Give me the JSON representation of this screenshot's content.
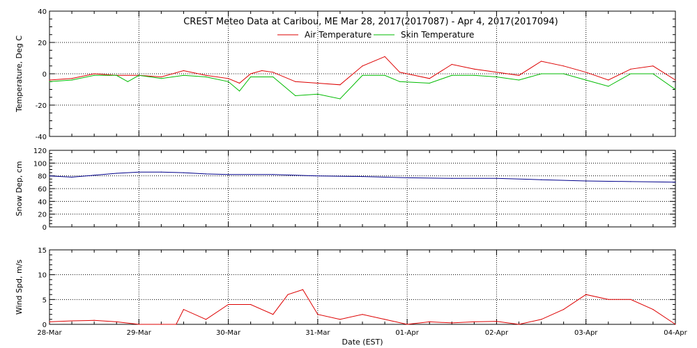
{
  "chart_data": {
    "type": "line",
    "title": "CREST Meteo Data at Caribou, ME   Mar 28, 2017(2017087) - Apr  4, 2017(2017094)",
    "xlabel": "Date (EST)",
    "x_ticks": [
      "28-Mar",
      "29-Mar",
      "30-Mar",
      "31-Mar",
      "01-Apr",
      "02-Apr",
      "03-Apr",
      "04-Apr"
    ],
    "x_range": [
      "2017-03-28",
      "2017-04-04"
    ],
    "grid": true,
    "panels": [
      {
        "ylabel": "Temperature, Deg C",
        "ylim": [
          -40,
          40
        ],
        "yticks": [
          -40,
          -20,
          0,
          20,
          40
        ],
        "legend_placement": "top-center",
        "series": [
          {
            "name": "Air Temperature",
            "color": "#dd0000",
            "x": [
              "2017-03-28 00:00",
              "2017-03-28 06:00",
              "2017-03-28 12:00",
              "2017-03-28 18:00",
              "2017-03-29 00:00",
              "2017-03-29 06:00",
              "2017-03-29 12:00",
              "2017-03-29 18:00",
              "2017-03-30 00:00",
              "2017-03-30 03:00",
              "2017-03-30 06:00",
              "2017-03-30 09:00",
              "2017-03-30 12:00",
              "2017-03-30 18:00",
              "2017-03-31 00:00",
              "2017-03-31 06:00",
              "2017-03-31 08:00",
              "2017-03-31 12:00",
              "2017-03-31 18:00",
              "2017-03-31 22:00",
              "2017-04-01 00:00",
              "2017-04-01 06:00",
              "2017-04-01 12:00",
              "2017-04-01 18:00",
              "2017-04-02 00:00",
              "2017-04-02 06:00",
              "2017-04-02 12:00",
              "2017-04-02 18:00",
              "2017-04-03 00:00",
              "2017-04-03 06:00",
              "2017-04-03 12:00",
              "2017-04-03 18:00",
              "2017-04-04 00:00"
            ],
            "y": [
              -4,
              -3,
              0,
              -1,
              -1,
              -2,
              2,
              -1,
              -3,
              -6,
              0,
              2,
              1,
              -5,
              -6,
              -7,
              -3,
              5,
              11,
              1,
              0,
              -3,
              6,
              3,
              1,
              -1,
              8,
              5,
              1,
              -4,
              3,
              5,
              -4
            ]
          },
          {
            "name": "Skin Temperature",
            "color": "#00bb00",
            "x": [
              "2017-03-28 00:00",
              "2017-03-28 06:00",
              "2017-03-28 12:00",
              "2017-03-28 18:00",
              "2017-03-28 21:00",
              "2017-03-29 00:00",
              "2017-03-29 06:00",
              "2017-03-29 12:00",
              "2017-03-29 18:00",
              "2017-03-30 00:00",
              "2017-03-30 03:00",
              "2017-03-30 06:00",
              "2017-03-30 12:00",
              "2017-03-30 18:00",
              "2017-03-31 00:00",
              "2017-03-31 06:00",
              "2017-03-31 12:00",
              "2017-03-31 18:00",
              "2017-03-31 22:00",
              "2017-04-01 06:00",
              "2017-04-01 12:00",
              "2017-04-01 18:00",
              "2017-04-02 00:00",
              "2017-04-02 06:00",
              "2017-04-02 12:00",
              "2017-04-02 18:00",
              "2017-04-03 00:00",
              "2017-04-03 06:00",
              "2017-04-03 12:00",
              "2017-04-03 18:00",
              "2017-04-04 00:00"
            ],
            "y": [
              -5,
              -4,
              -1,
              -1,
              -5,
              -1,
              -3,
              -1,
              -2,
              -5,
              -11,
              -2,
              -2,
              -14,
              -13,
              -16,
              -1,
              -1,
              -5,
              -6,
              -1,
              -1,
              -2,
              -4,
              0,
              0,
              -4,
              -8,
              0,
              0,
              -10
            ]
          }
        ]
      },
      {
        "ylabel": "Snow Dep, cm",
        "ylim": [
          0,
          120
        ],
        "yticks": [
          0,
          20,
          40,
          60,
          80,
          100,
          120
        ],
        "series": [
          {
            "color": "#00008b",
            "x": [
              "2017-03-28 00:00",
              "2017-03-28 06:00",
              "2017-03-28 12:00",
              "2017-03-28 18:00",
              "2017-03-29 00:00",
              "2017-03-29 06:00",
              "2017-03-29 12:00",
              "2017-03-29 18:00",
              "2017-03-30 00:00",
              "2017-03-30 12:00",
              "2017-03-31 00:00",
              "2017-03-31 12:00",
              "2017-04-01 00:00",
              "2017-04-01 12:00",
              "2017-04-02 00:00",
              "2017-04-02 12:00",
              "2017-04-03 00:00",
              "2017-04-03 12:00",
              "2017-04-04 00:00"
            ],
            "y": [
              80,
              78,
              81,
              84,
              86,
              86,
              85,
              83,
              82,
              82,
              80,
              79,
              77,
              76,
              76,
              74,
              72,
              71,
              70
            ]
          }
        ]
      },
      {
        "ylabel": "Wind Spd, m/s",
        "ylim": [
          0,
          15
        ],
        "yticks": [
          0,
          5,
          10,
          15
        ],
        "series": [
          {
            "color": "#dd0000",
            "x": [
              "2017-03-28 00:00",
              "2017-03-28 06:00",
              "2017-03-28 12:00",
              "2017-03-28 18:00",
              "2017-03-29 00:00",
              "2017-03-29 06:00",
              "2017-03-29 10:00",
              "2017-03-29 12:00",
              "2017-03-29 18:00",
              "2017-03-30 00:00",
              "2017-03-30 06:00",
              "2017-03-30 12:00",
              "2017-03-30 16:00",
              "2017-03-30 20:00",
              "2017-03-31 00:00",
              "2017-03-31 06:00",
              "2017-03-31 12:00",
              "2017-03-31 18:00",
              "2017-04-01 00:00",
              "2017-04-01 06:00",
              "2017-04-01 12:00",
              "2017-04-01 18:00",
              "2017-04-02 00:00",
              "2017-04-02 06:00",
              "2017-04-02 12:00",
              "2017-04-02 18:00",
              "2017-04-03 00:00",
              "2017-04-03 06:00",
              "2017-04-03 12:00",
              "2017-04-03 18:00",
              "2017-04-04 00:00"
            ],
            "y": [
              0.5,
              0.7,
              0.8,
              0.5,
              0,
              0,
              0,
              3,
              1,
              4,
              4,
              2,
              6,
              7,
              2,
              1,
              2,
              1,
              0,
              0.5,
              0.3,
              0.5,
              0.6,
              0,
              1,
              3,
              6,
              5,
              5,
              3,
              0
            ]
          }
        ]
      }
    ]
  }
}
